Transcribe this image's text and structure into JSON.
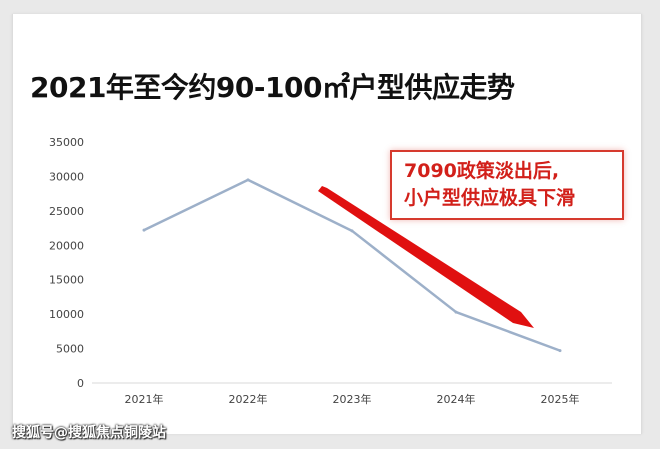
{
  "title": "2021年至今约90-100㎡户型供应走势",
  "callout": {
    "line1": "7090政策淡出后,",
    "line2": "小户型供应极具下滑"
  },
  "watermark": "搜狐号@搜狐焦点铜陵站",
  "colors": {
    "line": "#9db0c9",
    "arrow": "#e01010",
    "callout": "#d2201a"
  },
  "chart_data": {
    "type": "line",
    "title": "2021年至今约90-100㎡户型供应走势",
    "xlabel": "",
    "ylabel": "",
    "categories": [
      "2021年",
      "2022年",
      "2023年",
      "2024年",
      "2025年"
    ],
    "values": [
      22200,
      29500,
      22100,
      10300,
      4700
    ],
    "ylim": [
      0,
      35000
    ],
    "yticks": [
      "0",
      "5000",
      "10000",
      "15000",
      "20000",
      "25000",
      "30000",
      "35000"
    ],
    "grid": false,
    "legend": "none"
  }
}
